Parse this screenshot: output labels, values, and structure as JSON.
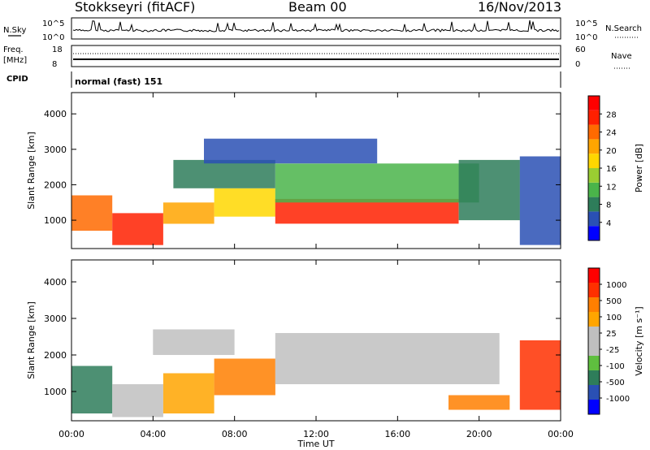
{
  "header": {
    "station": "Stokkseyri (fitACF)",
    "beam": "Beam 00",
    "date": "16/Nov/2013"
  },
  "nsky_panel": {
    "left_label": "N.Sky",
    "right_label": "N.Search",
    "ticks_left": [
      "10^5",
      "10^0"
    ],
    "ticks_right": [
      "10^5",
      "10^0"
    ]
  },
  "freq_panel": {
    "left_label_1": "Freq.",
    "left_label_2": "[MHz]",
    "right_label": "Nave",
    "ticks_left": [
      "18",
      "8"
    ],
    "ticks_right": [
      "60",
      "0"
    ]
  },
  "cpid": {
    "label": "CPID",
    "value": "normal (fast) 151"
  },
  "chart_data": [
    {
      "type": "heatmap",
      "panel": "power",
      "ylabel": "Slant Range [km]",
      "xlabel": "Time UT",
      "x_ticks": [
        "00:00",
        "04:00",
        "08:00",
        "12:00",
        "16:00",
        "20:00",
        "00:00"
      ],
      "y_ticks": [
        1000,
        2000,
        3000,
        4000
      ],
      "ylim": [
        200,
        4600
      ],
      "xlim": [
        0,
        24
      ],
      "colorbar": {
        "label": "Power [dB]",
        "ticks": [
          "4",
          "8",
          "12",
          "16",
          "20",
          "24",
          "28"
        ],
        "colors": [
          "#0000ff",
          "#2a50b4",
          "#2e7d5a",
          "#4ab44a",
          "#9acd32",
          "#ffd700",
          "#ffa500",
          "#ff6a00",
          "#ff2000",
          "#ff0000"
        ]
      },
      "regions": [
        {
          "t0": 0.0,
          "t1": 2.0,
          "r0": 700,
          "r1": 1700,
          "level": 7
        },
        {
          "t0": 2.0,
          "t1": 4.5,
          "r0": 300,
          "r1": 1200,
          "level": 8
        },
        {
          "t0": 4.5,
          "t1": 7.0,
          "r0": 900,
          "r1": 1500,
          "level": 6
        },
        {
          "t0": 7.0,
          "t1": 10.0,
          "r0": 1100,
          "r1": 1900,
          "level": 5
        },
        {
          "t0": 10.0,
          "t1": 19.0,
          "r0": 900,
          "r1": 1600,
          "level": 8
        },
        {
          "t0": 10.0,
          "t1": 20.0,
          "r0": 1500,
          "r1": 2600,
          "level": 3
        },
        {
          "t0": 5.0,
          "t1": 10.0,
          "r0": 1900,
          "r1": 2700,
          "level": 2
        },
        {
          "t0": 6.5,
          "t1": 15.0,
          "r0": 2600,
          "r1": 3300,
          "level": 1
        },
        {
          "t0": 19.0,
          "t1": 22.0,
          "r0": 1000,
          "r1": 2700,
          "level": 2
        },
        {
          "t0": 22.0,
          "t1": 24.0,
          "r0": 300,
          "r1": 2800,
          "level": 1
        }
      ]
    },
    {
      "type": "heatmap",
      "panel": "velocity",
      "ylabel": "Slant Range [km]",
      "xlabel": "Time UT",
      "x_ticks": [
        "00:00",
        "04:00",
        "08:00",
        "12:00",
        "16:00",
        "20:00",
        "00:00"
      ],
      "y_ticks": [
        1000,
        2000,
        3000,
        4000
      ],
      "ylim": [
        200,
        4600
      ],
      "xlim": [
        0,
        24
      ],
      "colorbar": {
        "label": "Velocity [m s⁻¹]",
        "ticks": [
          "1000",
          "500",
          "100",
          "25",
          "-25",
          "-100",
          "-500",
          "-1000"
        ],
        "colors": [
          "#0000ff",
          "#2a50b4",
          "#2e7d5a",
          "#5fbf3f",
          "#bfbfbf",
          "#bfbfbf",
          "#ffa500",
          "#ff7f00",
          "#ff3000",
          "#ff0000"
        ]
      },
      "regions": [
        {
          "t0": 0.0,
          "t1": 2.0,
          "r0": 400,
          "r1": 1700,
          "level": 2
        },
        {
          "t0": 2.0,
          "t1": 4.5,
          "r0": 300,
          "r1": 1200,
          "level": 4
        },
        {
          "t0": 4.5,
          "t1": 7.0,
          "r0": 400,
          "r1": 1500,
          "level": 6
        },
        {
          "t0": 7.0,
          "t1": 10.0,
          "r0": 900,
          "r1": 1900,
          "level": 7
        },
        {
          "t0": 10.0,
          "t1": 21.0,
          "r0": 1200,
          "r1": 2600,
          "level": 4
        },
        {
          "t0": 4.0,
          "t1": 8.0,
          "r0": 2000,
          "r1": 2700,
          "level": 5
        },
        {
          "t0": 18.5,
          "t1": 21.5,
          "r0": 500,
          "r1": 900,
          "level": 7
        },
        {
          "t0": 22.0,
          "t1": 24.0,
          "r0": 500,
          "r1": 2400,
          "level": 8
        }
      ]
    }
  ]
}
